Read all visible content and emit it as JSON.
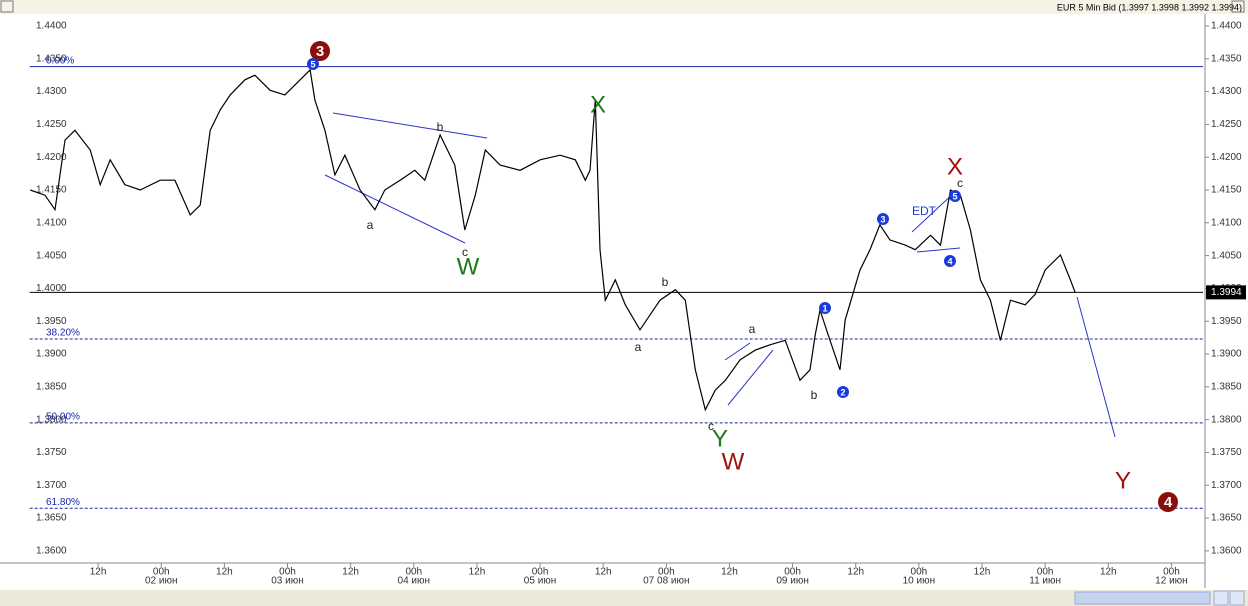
{
  "chart_data": {
    "type": "line",
    "title": "EUR 5 Min Bid (1.3997 1.3998 1.3992 1.3994)",
    "color": "#000000",
    "x": [
      -0.9,
      1.9,
      3.8,
      5.7,
      7.6,
      10.5,
      12.4,
      14.3,
      17.1,
      20.0,
      23.8,
      26.6,
      29.5,
      31.4,
      33.3,
      35.2,
      37.1,
      39.9,
      41.8,
      44.7,
      47.5,
      50.4,
      52.3,
      53.2,
      55.1,
      57.0,
      58.9,
      61.8,
      64.6,
      66.5,
      69.4,
      72.2,
      74.1,
      77.0,
      79.8,
      81.7,
      83.7,
      85.6,
      88.4,
      92.2,
      96.0,
      99.8,
      102.7,
      104.6,
      105.5,
      106.5,
      107.4,
      108.4,
      110.3,
      112.2,
      115.0,
      118.8,
      121.7,
      123.6,
      125.5,
      127.4,
      129.3,
      131.2,
      134.0,
      136.9,
      139.7,
      142.6,
      145.4,
      147.3,
      148.3,
      149.2,
      151.1,
      153.0,
      154.0,
      156.8,
      158.7,
      160.6,
      162.5,
      165.4,
      167.3,
      170.2,
      172.1,
      174.0,
      175.9,
      177.8,
      179.7,
      181.6,
      183.5,
      185.4,
      188.2,
      190.1,
      192.0,
      194.9,
      196.8,
      197.7
    ],
    "values": [
      1.415,
      1.4142,
      1.412,
      1.4226,
      1.4241,
      1.4211,
      1.4158,
      1.4196,
      1.4158,
      1.415,
      1.4165,
      1.4165,
      1.4112,
      1.4127,
      1.4241,
      1.4272,
      1.4295,
      1.4318,
      1.4325,
      1.4302,
      1.4295,
      1.4318,
      1.4333,
      1.4287,
      1.4241,
      1.4173,
      1.4203,
      1.415,
      1.412,
      1.415,
      1.4165,
      1.418,
      1.4165,
      1.4234,
      1.4188,
      1.4089,
      1.4142,
      1.4211,
      1.4188,
      1.418,
      1.4196,
      1.4203,
      1.4196,
      1.4165,
      1.418,
      1.4287,
      1.4059,
      1.3982,
      1.4013,
      1.3975,
      1.3937,
      1.3982,
      1.3998,
      1.3982,
      1.3876,
      1.3815,
      1.3845,
      1.386,
      1.3891,
      1.3906,
      1.3914,
      1.3921,
      1.386,
      1.3876,
      1.3929,
      1.3967,
      1.3921,
      1.3876,
      1.3952,
      1.4028,
      1.4059,
      1.4097,
      1.4074,
      1.4066,
      1.4059,
      1.4081,
      1.4066,
      1.415,
      1.4142,
      1.4089,
      1.4013,
      1.3982,
      1.3921,
      1.3982,
      1.3975,
      1.3991,
      1.4028,
      1.4051,
      1.4013,
      1.3994
    ],
    "xlim": [
      -1,
      222
    ],
    "xticks": [
      {
        "value": 12,
        "label": "12h"
      },
      {
        "value": 24,
        "label": "00h",
        "date": "02 июн"
      },
      {
        "value": 36,
        "label": "12h"
      },
      {
        "value": 48,
        "label": "00h",
        "date": "03 июн"
      },
      {
        "value": 60,
        "label": "12h"
      },
      {
        "value": 72,
        "label": "00h",
        "date": "04 июн"
      },
      {
        "value": 84,
        "label": "12h"
      },
      {
        "value": 96,
        "label": "00h",
        "date": "05 июн"
      },
      {
        "value": 108,
        "label": "12h"
      },
      {
        "value": 120,
        "label": "00h",
        "date": "07 08 июн"
      },
      {
        "value": 132,
        "label": "12h"
      },
      {
        "value": 144,
        "label": "00h",
        "date": "09 июн"
      },
      {
        "value": 156,
        "label": "12h"
      },
      {
        "value": 168,
        "label": "00h",
        "date": "10 июн"
      },
      {
        "value": 180,
        "label": "12h"
      },
      {
        "value": 192,
        "label": "00h",
        "date": "11 июн"
      },
      {
        "value": 204,
        "label": "12h"
      },
      {
        "value": 216,
        "label": "00h",
        "date": "12 июн"
      }
    ],
    "ylim": [
      1.358,
      1.441
    ],
    "yticks": [
      {
        "value": 1.36,
        "label": "1.3600"
      },
      {
        "value": 1.365,
        "label": "1.3650"
      },
      {
        "value": 1.37,
        "label": "1.3700"
      },
      {
        "value": 1.375,
        "label": "1.3750"
      },
      {
        "value": 1.38,
        "label": "1.3800"
      },
      {
        "value": 1.385,
        "label": "1.3850"
      },
      {
        "value": 1.39,
        "label": "1.3900"
      },
      {
        "value": 1.395,
        "label": "1.3950"
      },
      {
        "value": 1.4,
        "label": "1.4000"
      },
      {
        "value": 1.405,
        "label": "1.4050"
      },
      {
        "value": 1.41,
        "label": "1.4100"
      },
      {
        "value": 1.415,
        "label": "1.4150"
      },
      {
        "value": 1.42,
        "label": "1.4200"
      },
      {
        "value": 1.425,
        "label": "1.4250"
      },
      {
        "value": 1.43,
        "label": "1.4300"
      },
      {
        "value": 1.435,
        "label": "1.4350"
      },
      {
        "value": 1.44,
        "label": "1.4400"
      }
    ],
    "fib_levels": [
      {
        "value": 1.4338,
        "label": "0.00%"
      },
      {
        "value": 1.3923,
        "label": "38.20%"
      },
      {
        "value": 1.3795,
        "label": "50.00%"
      },
      {
        "value": 1.3665,
        "label": "61.80%"
      }
    ],
    "last_price": 1.3994,
    "annotations": [
      "3",
      "5",
      "X",
      "W",
      "a",
      "b",
      "c",
      "a",
      "b",
      "c",
      "Y",
      "W",
      "a",
      "b",
      "1",
      "2",
      "3",
      "4",
      "5",
      "EDT",
      "X",
      "c",
      "Y",
      "4"
    ]
  }
}
